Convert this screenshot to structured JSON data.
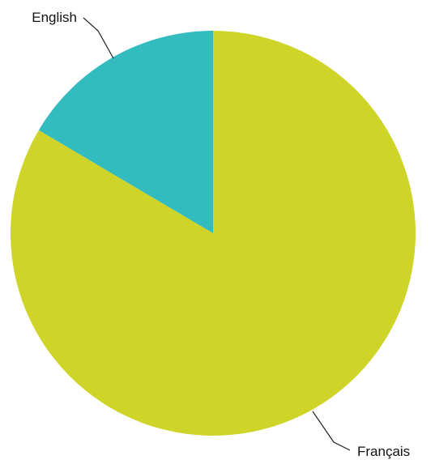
{
  "chart_data": {
    "type": "pie",
    "title": "",
    "slices": [
      {
        "label": "Français",
        "value": 83.5,
        "color": "#cfd428"
      },
      {
        "label": "English",
        "value": 16.5,
        "color": "#33bcc0"
      }
    ],
    "start": "12 o'clock",
    "direction": "clockwise",
    "labels": "outside with leader lines"
  }
}
